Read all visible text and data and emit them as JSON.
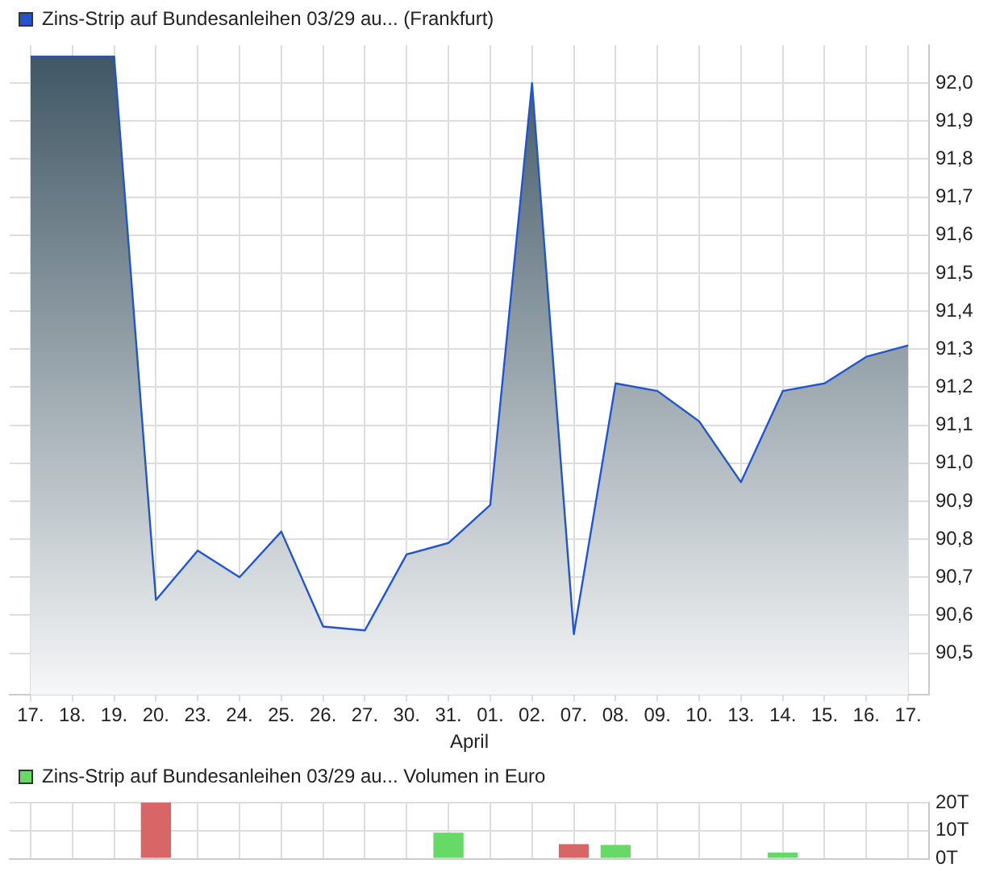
{
  "chart_data": [
    {
      "type": "area",
      "categories": [
        "17.",
        "18.",
        "19.",
        "20.",
        "23.",
        "24.",
        "25.",
        "26.",
        "27.",
        "30.",
        "31.",
        "01.",
        "02.",
        "07.",
        "08.",
        "09.",
        "10.",
        "13.",
        "14.",
        "15.",
        "16.",
        "17."
      ],
      "series": [
        {
          "name": "Zins-Strip auf Bundesanleihen 03/29 au... (Frankfurt)",
          "color": "#2255cc",
          "values": [
            92.07,
            92.07,
            92.07,
            90.64,
            90.77,
            90.7,
            90.82,
            90.57,
            90.56,
            90.76,
            90.79,
            90.89,
            92.0,
            90.55,
            91.21,
            91.19,
            91.11,
            90.95,
            91.19,
            91.21,
            91.28,
            91.31
          ]
        }
      ],
      "ylim": [
        90.39,
        92.1
      ],
      "yticks": [
        {
          "value": 90.5,
          "label": "90,5"
        },
        {
          "value": 90.6,
          "label": "90,6"
        },
        {
          "value": 90.7,
          "label": "90,7"
        },
        {
          "value": 90.8,
          "label": "90,8"
        },
        {
          "value": 90.9,
          "label": "90,9"
        },
        {
          "value": 91.0,
          "label": "91,0"
        },
        {
          "value": 91.1,
          "label": "91,1"
        },
        {
          "value": 91.2,
          "label": "91,2"
        },
        {
          "value": 91.3,
          "label": "91,3"
        },
        {
          "value": 91.4,
          "label": "91,4"
        },
        {
          "value": 91.5,
          "label": "91,5"
        },
        {
          "value": 91.6,
          "label": "91,6"
        },
        {
          "value": 91.7,
          "label": "91,7"
        },
        {
          "value": 91.8,
          "label": "91,8"
        },
        {
          "value": 91.9,
          "label": "91,9"
        },
        {
          "value": 92.0,
          "label": "92,0"
        }
      ],
      "xlabel": "April",
      "grid": true,
      "legend": "top left"
    },
    {
      "type": "bar",
      "categories": [
        "17.",
        "18.",
        "19.",
        "20.",
        "23.",
        "24.",
        "25.",
        "26.",
        "27.",
        "30.",
        "31.",
        "01.",
        "02.",
        "07.",
        "08.",
        "09.",
        "10.",
        "13.",
        "14.",
        "15.",
        "16.",
        "17."
      ],
      "series": [
        {
          "name": "Zins-Strip auf Bundesanleihen 03/29 au... Volumen in Euro",
          "color": "#66d966",
          "colors": [
            "#66d966",
            "#66d966",
            "#66d966",
            "#d96666",
            "#66d966",
            "#66d966",
            "#66d966",
            "#66d966",
            "#66d966",
            "#66d966",
            "#66d966",
            "#66d966",
            "#66d966",
            "#d96666",
            "#66d966",
            "#66d966",
            "#66d966",
            "#66d966",
            "#66d966",
            "#66d966",
            "#66d966",
            "#66d966"
          ],
          "values": [
            null,
            null,
            null,
            20,
            null,
            null,
            null,
            null,
            null,
            null,
            9.3,
            null,
            null,
            5.2,
            4.9,
            null,
            null,
            null,
            2.2,
            null,
            null,
            null
          ]
        }
      ],
      "ylim": [
        0,
        20
      ],
      "yticks": [
        {
          "value": 0,
          "label": "0T"
        },
        {
          "value": 10,
          "label": "10T"
        },
        {
          "value": 20,
          "label": "20T"
        }
      ],
      "tick_labels": "y",
      "grid": true,
      "legend": "top left"
    }
  ]
}
